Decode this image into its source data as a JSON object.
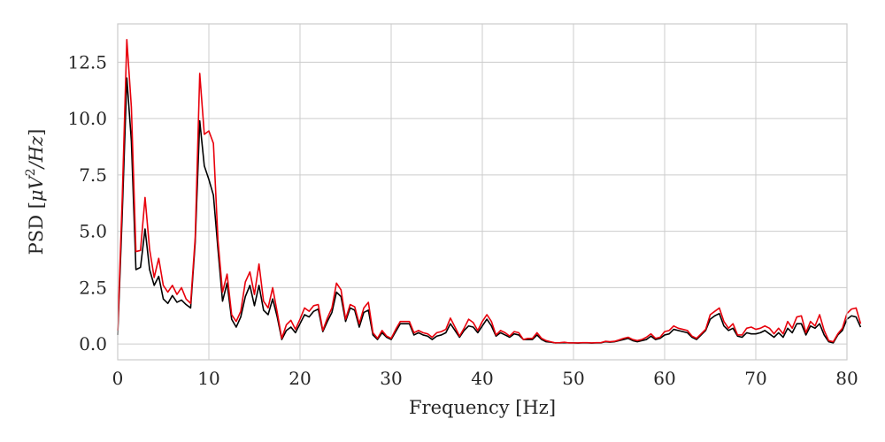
{
  "chart_data": {
    "type": "line",
    "title": "",
    "xlabel": "Frequency [Hz]",
    "ylabel_parts": [
      "PSD [",
      "μV",
      "2",
      "/",
      "Hz",
      "]"
    ],
    "xlim": [
      0,
      80
    ],
    "ylim": [
      -0.7,
      14.2
    ],
    "xticks": [
      0,
      10,
      20,
      30,
      40,
      50,
      60,
      70,
      80
    ],
    "xtick_labels": [
      "0",
      "10",
      "20",
      "30",
      "40",
      "50",
      "60",
      "70",
      "80"
    ],
    "yticks": [
      0.0,
      2.5,
      5.0,
      7.5,
      10.0,
      12.5
    ],
    "ytick_labels": [
      "0.0",
      "2.5",
      "5.0",
      "7.5",
      "10.0",
      "12.5"
    ],
    "grid": true,
    "x_step": 0.5,
    "series": [
      {
        "name": "black",
        "color": "#000000",
        "values": [
          0.4,
          5.8,
          11.8,
          9.0,
          3.3,
          3.4,
          5.1,
          3.3,
          2.6,
          3.0,
          2.0,
          1.8,
          2.15,
          1.85,
          1.95,
          1.75,
          1.6,
          4.5,
          9.9,
          7.9,
          7.3,
          6.6,
          4.2,
          1.9,
          2.7,
          1.1,
          0.75,
          1.2,
          2.1,
          2.6,
          1.7,
          2.6,
          1.5,
          1.3,
          2.0,
          1.2,
          0.2,
          0.6,
          0.75,
          0.5,
          0.9,
          1.3,
          1.2,
          1.45,
          1.55,
          0.55,
          1.0,
          1.4,
          2.3,
          2.1,
          1.0,
          1.6,
          1.5,
          0.75,
          1.4,
          1.5,
          0.4,
          0.2,
          0.5,
          0.3,
          0.2,
          0.55,
          0.9,
          0.9,
          0.9,
          0.4,
          0.5,
          0.4,
          0.35,
          0.2,
          0.35,
          0.4,
          0.5,
          0.9,
          0.6,
          0.3,
          0.6,
          0.8,
          0.75,
          0.5,
          0.8,
          1.1,
          0.8,
          0.35,
          0.5,
          0.4,
          0.3,
          0.45,
          0.4,
          0.2,
          0.2,
          0.2,
          0.4,
          0.2,
          0.1,
          0.08,
          0.05,
          0.05,
          0.06,
          0.05,
          0.05,
          0.04,
          0.05,
          0.05,
          0.04,
          0.05,
          0.05,
          0.1,
          0.08,
          0.1,
          0.15,
          0.2,
          0.25,
          0.15,
          0.1,
          0.15,
          0.2,
          0.35,
          0.2,
          0.25,
          0.4,
          0.45,
          0.65,
          0.6,
          0.55,
          0.5,
          0.3,
          0.2,
          0.4,
          0.6,
          1.1,
          1.25,
          1.35,
          0.8,
          0.6,
          0.7,
          0.35,
          0.3,
          0.5,
          0.45,
          0.45,
          0.5,
          0.6,
          0.45,
          0.3,
          0.5,
          0.3,
          0.7,
          0.5,
          0.9,
          0.9,
          0.4,
          0.8,
          0.7,
          0.9,
          0.4,
          0.1,
          0.05,
          0.4,
          0.6,
          1.1,
          1.25,
          1.2,
          0.75
        ]
      },
      {
        "name": "red",
        "color": "#e8000b",
        "values": [
          0.6,
          6.5,
          13.5,
          10.5,
          4.1,
          4.15,
          6.5,
          4.2,
          2.95,
          3.8,
          2.6,
          2.3,
          2.6,
          2.2,
          2.5,
          2.0,
          1.8,
          4.7,
          12.0,
          9.3,
          9.45,
          8.9,
          4.6,
          2.3,
          3.1,
          1.3,
          1.0,
          1.45,
          2.75,
          3.2,
          2.2,
          3.55,
          1.9,
          1.6,
          2.5,
          1.4,
          0.25,
          0.85,
          1.05,
          0.65,
          1.1,
          1.6,
          1.45,
          1.7,
          1.75,
          0.6,
          1.15,
          1.6,
          2.7,
          2.4,
          1.1,
          1.75,
          1.65,
          0.9,
          1.6,
          1.85,
          0.5,
          0.25,
          0.6,
          0.35,
          0.25,
          0.65,
          1.0,
          1.0,
          1.0,
          0.5,
          0.6,
          0.5,
          0.45,
          0.3,
          0.5,
          0.55,
          0.65,
          1.15,
          0.75,
          0.35,
          0.7,
          1.1,
          0.95,
          0.6,
          1.0,
          1.3,
          1.0,
          0.4,
          0.6,
          0.5,
          0.35,
          0.55,
          0.5,
          0.2,
          0.25,
          0.25,
          0.5,
          0.25,
          0.15,
          0.1,
          0.05,
          0.06,
          0.08,
          0.05,
          0.05,
          0.05,
          0.06,
          0.06,
          0.05,
          0.06,
          0.06,
          0.12,
          0.1,
          0.12,
          0.18,
          0.25,
          0.3,
          0.2,
          0.15,
          0.2,
          0.3,
          0.45,
          0.25,
          0.3,
          0.55,
          0.6,
          0.8,
          0.7,
          0.65,
          0.6,
          0.35,
          0.25,
          0.45,
          0.65,
          1.3,
          1.45,
          1.6,
          1.0,
          0.7,
          0.9,
          0.4,
          0.4,
          0.7,
          0.75,
          0.65,
          0.7,
          0.8,
          0.7,
          0.45,
          0.7,
          0.45,
          1.0,
          0.7,
          1.2,
          1.25,
          0.5,
          1.0,
          0.8,
          1.3,
          0.6,
          0.15,
          0.1,
          0.45,
          0.7,
          1.35,
          1.55,
          1.6,
          0.9
        ]
      }
    ]
  }
}
